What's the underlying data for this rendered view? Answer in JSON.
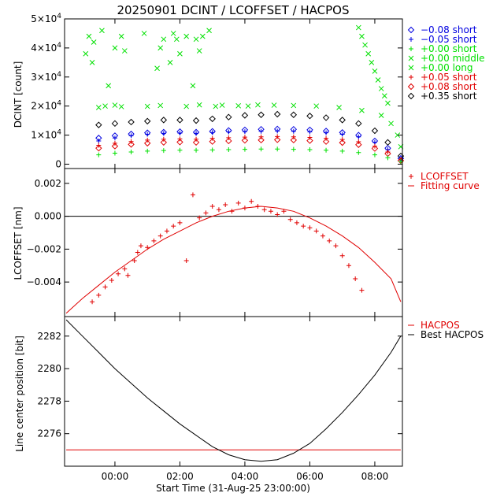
{
  "title": "20250901  DCINT / LCOFFSET / HACPOS",
  "xlabel": "Start Time (31-Aug-25 23:00:00)",
  "x_ticks": [
    {
      "hour": 1,
      "label": "00:00"
    },
    {
      "hour": 3,
      "label": "02:00"
    },
    {
      "hour": 5,
      "label": "04:00"
    },
    {
      "hour": 7,
      "label": "06:00"
    },
    {
      "hour": 9,
      "label": "08:00"
    }
  ],
  "colors": {
    "green": "#00e000",
    "red": "#e00000",
    "blue": "#0000e0",
    "black": "#000000"
  },
  "chart_data": [
    {
      "type": "scatter",
      "name": "dcint",
      "ylabel": "DCINT [count]",
      "xlim": [
        -0.55,
        9.85
      ],
      "ylim": [
        -1500,
        50000
      ],
      "y_ticks": [
        {
          "value": 0,
          "label": "0",
          "sup": ""
        },
        {
          "value": 10000,
          "label": "1×10",
          "sup": "4"
        },
        {
          "value": 20000,
          "label": "2×10",
          "sup": "4"
        },
        {
          "value": 30000,
          "label": "3×10",
          "sup": "4"
        },
        {
          "value": 40000,
          "label": "4×10",
          "sup": "4"
        },
        {
          "value": 50000,
          "label": "5×10",
          "sup": "4"
        }
      ],
      "legend": [
        {
          "label": "−0.08 short",
          "marker": "diamond",
          "color": "#0000e0"
        },
        {
          "label": "−0.05 short",
          "marker": "plus",
          "color": "#0000e0"
        },
        {
          "label": "+0.00 short",
          "marker": "plus",
          "color": "#00e000"
        },
        {
          "label": "+0.00 middle",
          "marker": "x",
          "color": "#00e000"
        },
        {
          "label": "+0.00 long",
          "marker": "x",
          "color": "#00e000"
        },
        {
          "label": "+0.05 short",
          "marker": "plus",
          "color": "#e00000"
        },
        {
          "label": "+0.08 short",
          "marker": "diamond",
          "color": "#e00000"
        },
        {
          "label": "+0.35 short",
          "marker": "diamond",
          "color": "#000000"
        }
      ],
      "series": [
        {
          "name": "+0.00 long",
          "marker": "x",
          "color": "#00e000",
          "x": [
            0.5,
            0.7,
            1.0,
            1.2,
            2.0,
            2.4,
            3.2,
            3.6,
            4.1,
            4.3,
            4.8,
            5.1,
            5.4,
            5.9,
            6.5,
            7.2,
            7.9,
            8.6,
            9.2,
            9.5,
            9.7,
            9.8
          ],
          "y": [
            19500,
            20000,
            20300,
            19800,
            19900,
            20200,
            19900,
            20400,
            19900,
            20300,
            20100,
            20000,
            20400,
            20300,
            20200,
            20000,
            19500,
            18500,
            16800,
            14000,
            10000,
            6000
          ]
        },
        {
          "name": "+0.35 short",
          "marker": "diamond",
          "color": "#000000",
          "x": [
            0.5,
            1.0,
            1.5,
            2.0,
            2.5,
            3.0,
            3.5,
            4.0,
            4.5,
            5.0,
            5.5,
            6.0,
            6.5,
            7.0,
            7.5,
            8.0,
            8.5,
            9.0,
            9.4,
            9.8
          ],
          "y": [
            13500,
            14000,
            14500,
            14800,
            15200,
            15200,
            15000,
            15600,
            16200,
            16800,
            17000,
            17200,
            17000,
            16600,
            16000,
            15200,
            14000,
            11500,
            7500,
            2800
          ]
        },
        {
          "name": "−0.08 short",
          "marker": "diamond",
          "color": "#0000e0",
          "x": [
            0.5,
            1.0,
            1.5,
            2.0,
            2.5,
            3.0,
            3.5,
            4.0,
            4.5,
            5.0,
            5.5,
            6.0,
            6.5,
            7.0,
            7.5,
            8.0,
            8.5,
            9.0,
            9.4,
            9.8
          ],
          "y": [
            9000,
            9800,
            10400,
            10800,
            11000,
            11200,
            11000,
            11300,
            11600,
            11800,
            12000,
            12100,
            12000,
            11800,
            11400,
            10900,
            10000,
            8000,
            5500,
            2000
          ]
        },
        {
          "name": "−0.05 short",
          "marker": "plus",
          "color": "#0000e0",
          "x": [
            0.5,
            1.0,
            1.5,
            2.0,
            2.5,
            3.0,
            3.5,
            4.0,
            4.5,
            5.0,
            5.5,
            6.0,
            6.5,
            7.0,
            7.5,
            8.0,
            8.5,
            9.0,
            9.4,
            9.8
          ],
          "y": [
            8000,
            9000,
            9800,
            10300,
            10600,
            10700,
            10600,
            10900,
            11100,
            11200,
            11300,
            11400,
            11300,
            11100,
            10800,
            10300,
            9400,
            7500,
            5000,
            1800
          ]
        },
        {
          "name": "+0.05 short",
          "marker": "plus",
          "color": "#e00000",
          "x": [
            0.5,
            1.0,
            1.5,
            2.0,
            2.5,
            3.0,
            3.5,
            4.0,
            4.5,
            5.0,
            5.5,
            6.0,
            6.5,
            7.0,
            7.5,
            8.0,
            8.5,
            9.0,
            9.4,
            9.8
          ],
          "y": [
            6500,
            7200,
            7800,
            8300,
            8600,
            8700,
            8600,
            8900,
            9100,
            9300,
            9400,
            9500,
            9400,
            9200,
            8900,
            8500,
            7700,
            6200,
            4200,
            1500
          ]
        },
        {
          "name": "+0.08 short",
          "marker": "diamond",
          "color": "#e00000",
          "x": [
            0.5,
            1.0,
            1.5,
            2.0,
            2.5,
            3.0,
            3.5,
            4.0,
            4.5,
            5.0,
            5.5,
            6.0,
            6.5,
            7.0,
            7.5,
            8.0,
            8.5,
            9.0,
            9.4,
            9.8
          ],
          "y": [
            5500,
            6200,
            6800,
            7200,
            7500,
            7600,
            7500,
            7800,
            8000,
            8200,
            8300,
            8400,
            8300,
            8100,
            7800,
            7400,
            6700,
            5400,
            3600,
            1200
          ]
        },
        {
          "name": "+0.00 short",
          "marker": "plus",
          "color": "#00e000",
          "x": [
            0.5,
            1.0,
            1.5,
            2.0,
            2.5,
            3.0,
            3.5,
            4.0,
            4.5,
            5.0,
            5.5,
            6.0,
            6.5,
            7.0,
            7.5,
            8.0,
            8.5,
            9.0,
            9.4,
            9.8
          ],
          "y": [
            3200,
            3800,
            4200,
            4500,
            4700,
            4800,
            4800,
            4900,
            5000,
            5100,
            5200,
            5200,
            5100,
            5000,
            4800,
            4500,
            4000,
            3200,
            2200,
            900
          ]
        },
        {
          "name": "+0.00 middle",
          "marker": "x",
          "color": "#00e000",
          "x": [
            0.1,
            0.2,
            0.3,
            0.35,
            0.6,
            0.8,
            1.0,
            1.2,
            1.3,
            1.9,
            2.3,
            2.4,
            2.5,
            2.7,
            2.8,
            2.9,
            3.0,
            3.2,
            3.4,
            3.5,
            3.6,
            3.7,
            3.9,
            8.5,
            8.6,
            8.7,
            8.8,
            8.9,
            9.0,
            9.1,
            9.2,
            9.3,
            9.4
          ],
          "y": [
            38000,
            44000,
            35000,
            42000,
            46000,
            27000,
            40000,
            44000,
            39000,
            45000,
            33000,
            40000,
            43000,
            35000,
            45000,
            43000,
            38000,
            44000,
            27000,
            43000,
            39000,
            44000,
            46000,
            47000,
            44000,
            41000,
            38000,
            35000,
            32000,
            29000,
            26000,
            23500,
            21000
          ]
        }
      ]
    },
    {
      "type": "scatter",
      "name": "lcoffset",
      "ylabel": "LCOFFSET [nm]",
      "xlim": [
        -0.55,
        9.85
      ],
      "ylim": [
        -0.0061,
        0.0029
      ],
      "y_ticks": [
        {
          "value": -0.004,
          "label": "−0.004"
        },
        {
          "value": -0.002,
          "label": "−0.002"
        },
        {
          "value": 0.0,
          "label": "0.000"
        },
        {
          "value": 0.002,
          "label": "0.002"
        }
      ],
      "zero_line": 0.0,
      "legend": [
        {
          "label": "LCOFFSET",
          "marker": "plus",
          "color": "#e00000"
        },
        {
          "label": "Fitting curve",
          "marker": "line",
          "color": "#e00000"
        }
      ],
      "series": [
        {
          "name": "LCOFFSET",
          "marker": "plus",
          "color": "#e00000",
          "x": [
            0.3,
            0.5,
            0.7,
            0.9,
            1.1,
            1.3,
            1.4,
            1.6,
            1.7,
            1.8,
            2.0,
            2.2,
            2.4,
            2.6,
            2.8,
            3.0,
            3.2,
            3.4,
            3.6,
            3.8,
            4.0,
            4.2,
            4.4,
            4.6,
            4.8,
            5.0,
            5.2,
            5.4,
            5.6,
            5.8,
            6.0,
            6.2,
            6.4,
            6.6,
            6.8,
            7.0,
            7.2,
            7.4,
            7.6,
            7.8,
            8.0,
            8.2,
            8.4,
            8.6
          ],
          "y": [
            -0.0052,
            -0.0048,
            -0.0043,
            -0.0039,
            -0.0035,
            -0.0032,
            -0.0036,
            -0.0027,
            -0.0022,
            -0.0018,
            -0.0019,
            -0.0015,
            -0.0012,
            -0.0009,
            -0.0006,
            -0.0004,
            -0.0027,
            0.0013,
            -0.0001,
            0.0002,
            0.0006,
            0.0004,
            0.0007,
            0.0003,
            0.0008,
            0.0005,
            0.0009,
            0.0006,
            0.0004,
            0.0003,
            0.0001,
            0.0003,
            -0.0002,
            -0.0004,
            -0.0006,
            -0.0007,
            -0.0009,
            -0.0012,
            -0.0015,
            -0.0018,
            -0.0024,
            -0.003,
            -0.0038,
            -0.0045
          ]
        },
        {
          "name": "Fitting curve",
          "marker": "line",
          "color": "#e00000",
          "x": [
            -0.5,
            0.0,
            0.5,
            1.0,
            1.5,
            2.0,
            2.5,
            3.0,
            3.5,
            4.0,
            4.5,
            5.0,
            5.5,
            6.0,
            6.5,
            7.0,
            7.5,
            8.0,
            8.5,
            9.0,
            9.5,
            9.8
          ],
          "y": [
            -0.0059,
            -0.005,
            -0.0042,
            -0.0034,
            -0.0027,
            -0.002,
            -0.0014,
            -0.0009,
            -0.0004,
            0.0,
            0.0003,
            0.0005,
            0.0006,
            0.0005,
            0.0003,
            -0.0001,
            -0.0006,
            -0.0012,
            -0.0019,
            -0.0028,
            -0.0038,
            -0.0052
          ]
        }
      ]
    },
    {
      "type": "line",
      "name": "hacpos",
      "ylabel": "Line center position [bit]",
      "xlim": [
        -0.55,
        9.85
      ],
      "ylim": [
        2274.0,
        2283.2
      ],
      "y_ticks": [
        {
          "value": 2276,
          "label": "2276"
        },
        {
          "value": 2278,
          "label": "2278"
        },
        {
          "value": 2280,
          "label": "2280"
        },
        {
          "value": 2282,
          "label": "2282"
        }
      ],
      "legend": [
        {
          "label": "HACPOS",
          "marker": "line",
          "color": "#e00000"
        },
        {
          "label": "Best HACPOS",
          "marker": "line",
          "color": "#000000"
        }
      ],
      "series": [
        {
          "name": "HACPOS",
          "color": "#e00000",
          "x": [
            -0.5,
            9.8
          ],
          "y": [
            2275.0,
            2275.0
          ]
        },
        {
          "name": "Best HACPOS",
          "color": "#000000",
          "x": [
            -0.5,
            0.0,
            0.5,
            1.0,
            1.5,
            2.0,
            2.5,
            3.0,
            3.5,
            4.0,
            4.5,
            5.0,
            5.5,
            6.0,
            6.5,
            7.0,
            7.5,
            8.0,
            8.5,
            9.0,
            9.5,
            9.8
          ],
          "y": [
            2283.0,
            2282.0,
            2281.0,
            2280.0,
            2279.1,
            2278.2,
            2277.4,
            2276.6,
            2275.9,
            2275.2,
            2274.7,
            2274.4,
            2274.3,
            2274.4,
            2274.8,
            2275.4,
            2276.3,
            2277.3,
            2278.4,
            2279.6,
            2281.0,
            2282.0
          ]
        }
      ]
    }
  ]
}
